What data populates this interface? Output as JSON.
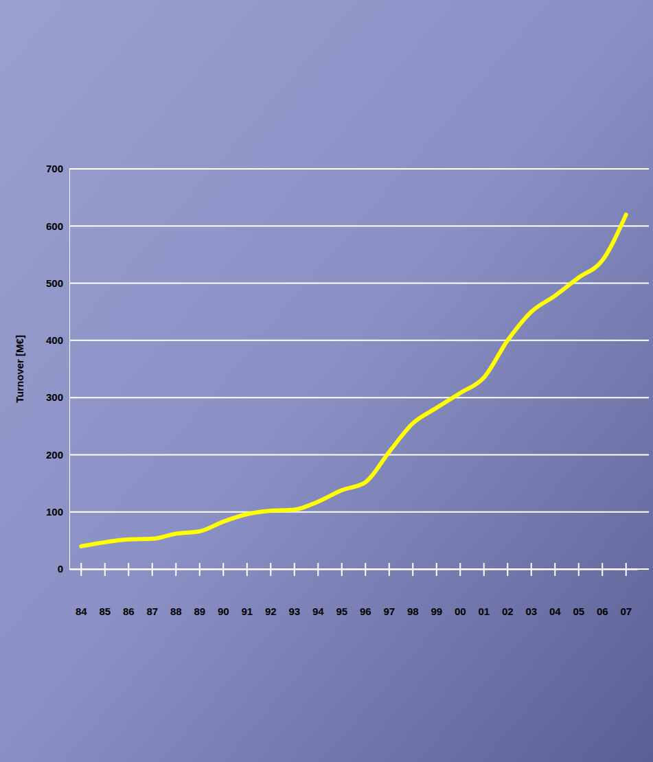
{
  "chart_data": {
    "type": "line",
    "y_label": "Turnover [M€]",
    "categories": [
      "84",
      "85",
      "86",
      "87",
      "88",
      "89",
      "90",
      "91",
      "92",
      "93",
      "94",
      "95",
      "96",
      "97",
      "98",
      "99",
      "00",
      "01",
      "02",
      "03",
      "04",
      "05",
      "06",
      "07"
    ],
    "values": [
      40,
      47,
      52,
      53,
      62,
      66,
      83,
      96,
      102,
      104,
      118,
      138,
      152,
      205,
      255,
      282,
      308,
      335,
      400,
      450,
      478,
      510,
      540,
      620
    ],
    "color": "#ffff00",
    "ylim": [
      0,
      700
    ],
    "yticks": [
      0,
      100,
      200,
      300,
      400,
      500,
      600,
      700
    ],
    "grid": true
  }
}
